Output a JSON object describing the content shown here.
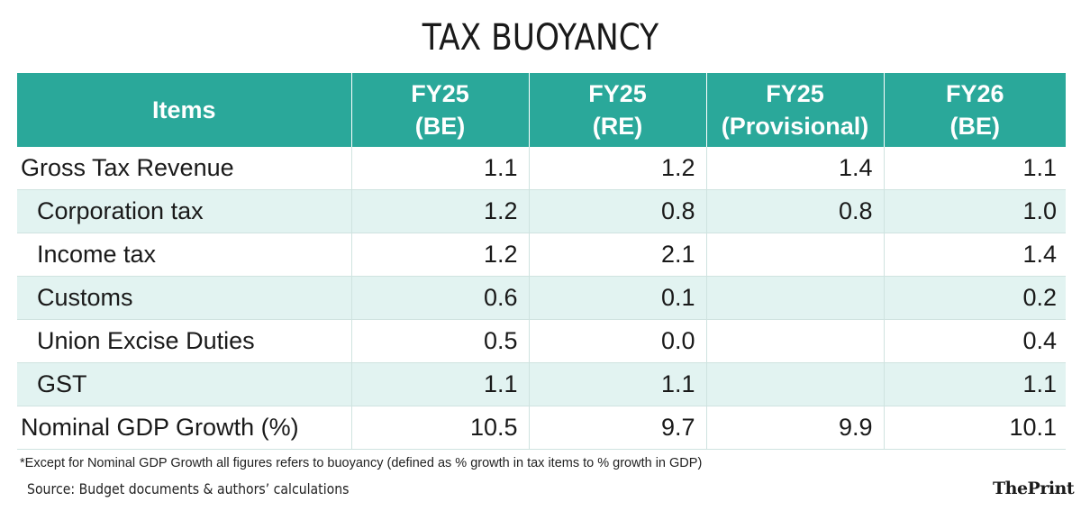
{
  "title": "TAX BUOYANCY",
  "columns": [
    "Items",
    "FY25\n(BE)",
    "FY25\n(RE)",
    "FY25\n(Provisional)",
    "FY26\n(BE)"
  ],
  "rows": [
    {
      "label": "Gross Tax Revenue",
      "values": [
        "1.1",
        "1.2",
        "1.4",
        "1.1"
      ]
    },
    {
      "label": "Corporation tax",
      "values": [
        "1.2",
        "0.8",
        "0.8",
        "1.0"
      ]
    },
    {
      "label": "Income tax",
      "values": [
        "1.2",
        "2.1",
        "",
        "1.4"
      ]
    },
    {
      "label": "Customs",
      "values": [
        "0.6",
        "0.1",
        "",
        "0.2"
      ]
    },
    {
      "label": "Union Excise Duties",
      "values": [
        "0.5",
        "0.0",
        "",
        "0.4"
      ]
    },
    {
      "label": "GST",
      "values": [
        "1.1",
        "1.1",
        "",
        "1.1"
      ]
    },
    {
      "label": "Nominal GDP Growth (%)",
      "values": [
        "10.5",
        "9.7",
        "9.9",
        "10.1"
      ]
    }
  ],
  "footnote": "*Except for Nominal GDP Growth all figures refers to buoyancy (defined as % growth in tax items to % growth in GDP)",
  "source": "Source: Budget documents & authors’ calculations",
  "logo": "ThePrint",
  "colors": {
    "header_bg": "#2aa89a",
    "shade_bg": "#e2f3f1"
  }
}
